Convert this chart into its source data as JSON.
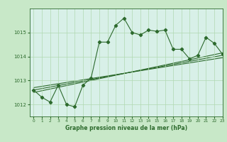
{
  "title": "Graphe pression niveau de la mer (hPa)",
  "bg_color": "#c8e8c8",
  "plot_bg_color": "#d8f0e8",
  "line_color": "#2d6a2d",
  "grid_color": "#b0d8b0",
  "xlim": [
    -0.5,
    23
  ],
  "ylim": [
    1011.5,
    1016.0
  ],
  "yticks": [
    1012,
    1013,
    1014,
    1015
  ],
  "xticks": [
    0,
    1,
    2,
    3,
    4,
    5,
    6,
    7,
    8,
    9,
    10,
    11,
    12,
    13,
    14,
    15,
    16,
    17,
    18,
    19,
    20,
    21,
    22,
    23
  ],
  "hours": [
    0,
    1,
    2,
    3,
    4,
    5,
    6,
    7,
    8,
    9,
    10,
    11,
    12,
    13,
    14,
    15,
    16,
    17,
    18,
    19,
    20,
    21,
    22,
    23
  ],
  "pressure": [
    1012.6,
    1012.3,
    1012.1,
    1012.8,
    1012.0,
    1011.9,
    1012.8,
    1013.1,
    1014.6,
    1014.6,
    1015.3,
    1015.6,
    1015.0,
    1014.9,
    1015.1,
    1015.05,
    1015.1,
    1014.3,
    1014.3,
    1013.9,
    1014.05,
    1014.8,
    1014.55,
    1014.1
  ],
  "trend_line": [
    [
      0,
      1012.5
    ],
    [
      23,
      1014.15
    ]
  ],
  "trend_line2": [
    [
      0,
      1012.6
    ],
    [
      23,
      1014.05
    ]
  ],
  "trend_line3": [
    [
      0,
      1012.7
    ],
    [
      23,
      1013.95
    ]
  ]
}
